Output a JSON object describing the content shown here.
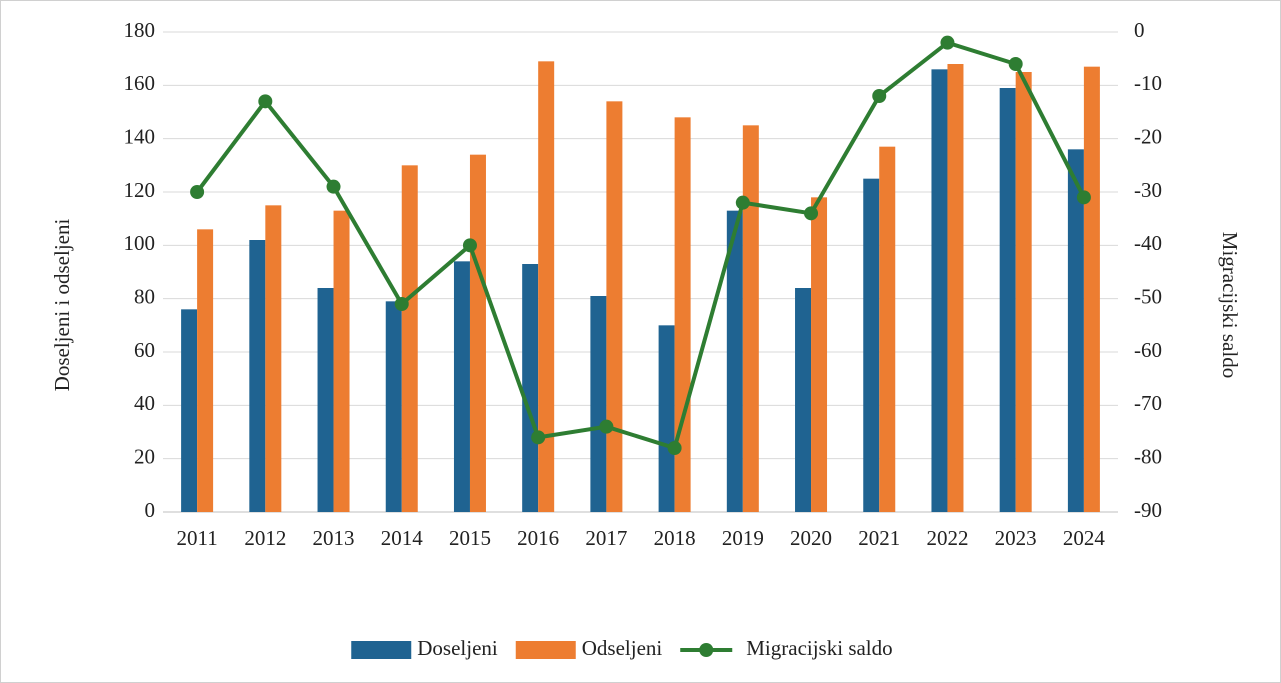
{
  "chart_data": {
    "type": "bar",
    "categories": [
      "2011",
      "2012",
      "2013",
      "2014",
      "2015",
      "2016",
      "2017",
      "2018",
      "2019",
      "2020",
      "2021",
      "2022",
      "2023",
      "2024"
    ],
    "series": [
      {
        "name": "Doseljeni",
        "color": "#1f6391",
        "values": [
          76,
          102,
          84,
          79,
          94,
          93,
          81,
          70,
          113,
          84,
          125,
          166,
          159,
          136
        ]
      },
      {
        "name": "Odseljeni",
        "color": "#ed7d31",
        "values": [
          106,
          115,
          113,
          130,
          134,
          169,
          154,
          148,
          145,
          118,
          137,
          168,
          165,
          167
        ]
      },
      {
        "name": "Migracijski saldo",
        "color": "#2e7d32",
        "type": "line",
        "axis": "y2",
        "values": [
          -30,
          -13,
          -29,
          -51,
          -40,
          -76,
          -74,
          -78,
          -32,
          -34,
          -12,
          -2,
          -6,
          -31
        ]
      }
    ],
    "y_label": "Doseljeni i odseljeni",
    "y2_label": "Migracijski saldo",
    "ylim": [
      0,
      180
    ],
    "yticks": [
      0,
      20,
      40,
      60,
      80,
      100,
      120,
      140,
      160,
      180
    ],
    "y2lim": [
      -90,
      0
    ],
    "y2ticks": [
      -90,
      -80,
      -70,
      -60,
      -50,
      -40,
      -30,
      -20,
      -10,
      0
    ],
    "grid": true,
    "legend": "bottom"
  }
}
